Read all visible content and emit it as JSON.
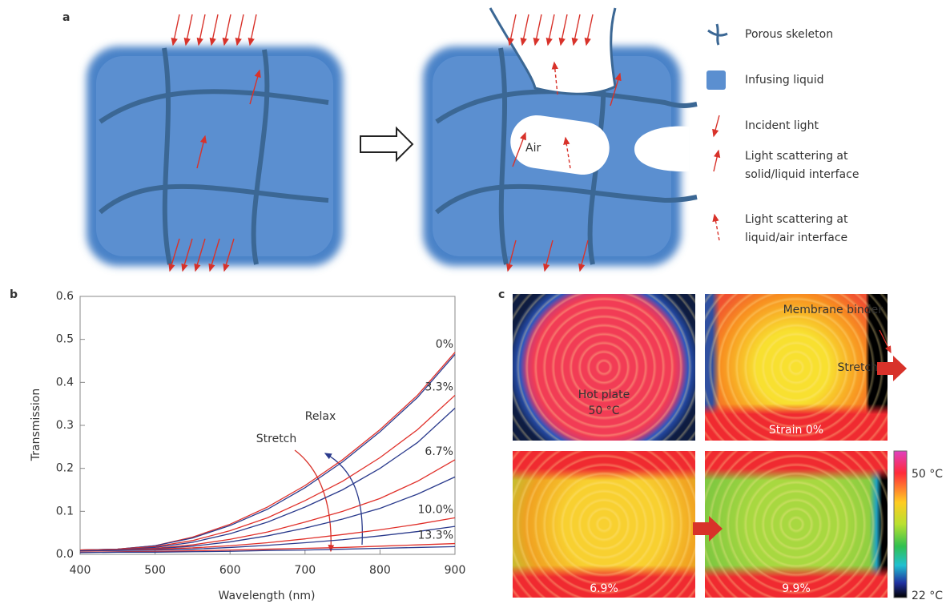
{
  "panel_a": {
    "label": "a",
    "air_label": "Air",
    "legend": [
      {
        "lines": [
          "Porous skeleton"
        ]
      },
      {
        "lines": [
          "Infusing liquid"
        ]
      },
      {
        "lines": [
          "Incident light"
        ]
      },
      {
        "lines": [
          "Light scattering at",
          "solid/liquid interface"
        ]
      },
      {
        "lines": [
          "Light scattering at",
          "liquid/air interface"
        ]
      }
    ]
  },
  "chart_data": {
    "type": "line",
    "panel_label": "b",
    "xlabel": "Wavelength (nm)",
    "ylabel": "Transmission",
    "x": [
      400,
      450,
      500,
      550,
      600,
      650,
      700,
      750,
      800,
      850,
      900
    ],
    "xlim": [
      400,
      900
    ],
    "ylim": [
      0,
      0.6
    ],
    "xticks": [
      400,
      500,
      600,
      700,
      800,
      900
    ],
    "yticks": [
      {
        "value": 0,
        "label": "0.0"
      },
      0.1,
      0.2,
      0.3,
      0.4,
      0.5,
      0.6
    ],
    "series": [
      {
        "color": "#e0302a",
        "values": [
          0.01,
          0.012,
          0.02,
          0.04,
          0.07,
          0.11,
          0.16,
          0.22,
          0.29,
          0.37,
          0.47
        ]
      },
      {
        "color": "#2a3a8c",
        "values": [
          0.01,
          0.012,
          0.02,
          0.038,
          0.067,
          0.105,
          0.155,
          0.215,
          0.285,
          0.365,
          0.465
        ]
      },
      {
        "color": "#e0302a",
        "values": [
          0.01,
          0.012,
          0.018,
          0.032,
          0.055,
          0.085,
          0.125,
          0.17,
          0.225,
          0.29,
          0.37
        ]
      },
      {
        "color": "#2a3a8c",
        "values": [
          0.01,
          0.011,
          0.016,
          0.028,
          0.048,
          0.075,
          0.11,
          0.15,
          0.2,
          0.26,
          0.34
        ]
      },
      {
        "color": "#e0302a",
        "values": [
          0.01,
          0.011,
          0.014,
          0.022,
          0.035,
          0.052,
          0.075,
          0.1,
          0.13,
          0.17,
          0.22
        ]
      },
      {
        "color": "#2a3a8c",
        "values": [
          0.01,
          0.011,
          0.013,
          0.019,
          0.029,
          0.043,
          0.061,
          0.082,
          0.107,
          0.14,
          0.18
        ]
      },
      {
        "color": "#e0302a",
        "values": [
          0.01,
          0.01,
          0.012,
          0.015,
          0.02,
          0.027,
          0.036,
          0.046,
          0.057,
          0.07,
          0.085
        ]
      },
      {
        "color": "#2a3a8c",
        "values": [
          0.008,
          0.009,
          0.01,
          0.012,
          0.016,
          0.021,
          0.027,
          0.034,
          0.043,
          0.053,
          0.065
        ]
      },
      {
        "color": "#e0302a",
        "values": [
          0.005,
          0.006,
          0.007,
          0.008,
          0.01,
          0.012,
          0.014,
          0.016,
          0.019,
          0.022,
          0.025
        ]
      },
      {
        "color": "#2a3a8c",
        "values": [
          0.004,
          0.005,
          0.005,
          0.006,
          0.007,
          0.009,
          0.01,
          0.012,
          0.014,
          0.016,
          0.018
        ]
      }
    ],
    "curve_labels": [
      "0%",
      "3.3%",
      "6.7%",
      "10.0%",
      "13.3%"
    ],
    "annotations": [
      "Stretch",
      "Relax"
    ]
  },
  "panel_c": {
    "label": "c",
    "hot_plate": [
      "Hot plate",
      "50 °C"
    ],
    "binder": "Membrane binder",
    "stretch": "Stretch",
    "strains": [
      "Strain 0%",
      "6.9%",
      "9.9%"
    ],
    "colorbar_max": "50 °C",
    "colorbar_min": "22 °C"
  }
}
